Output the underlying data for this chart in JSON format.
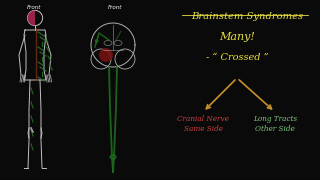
{
  "bg_color": "#0a0a0a",
  "title": "Brainstem Syndromes",
  "title_color": "#e8e040",
  "many_text": "Many!",
  "many_color": "#e8e040",
  "crossed_text": "- “ Crossed ”",
  "crossed_color": "#e8e040",
  "left_label_line1": "Cranial Nerve",
  "left_label_line2": "Same Side",
  "left_color": "#d04040",
  "right_label_line1": "Long Tracts",
  "right_label_line2": "Other Side",
  "right_color": "#80c880",
  "arrow_color": "#c8902a",
  "body_outline_color": "#c0c0c0",
  "body_fill_left": "#b02858",
  "nerve_green": "#2a7a2a",
  "spine_color": "#7a3010",
  "brain_outline_color": "#b0b0b0",
  "lesion_color": "#7a1010",
  "cord_color": "#1e6e1e",
  "front_color": "#ffffff"
}
